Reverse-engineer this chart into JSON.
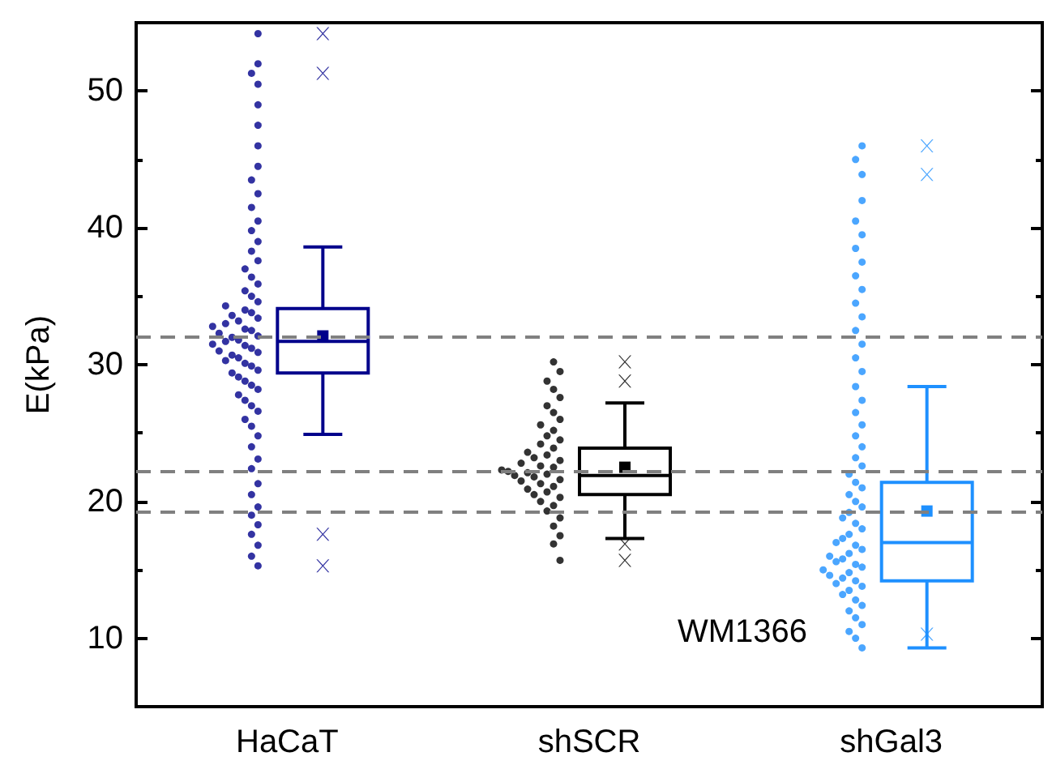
{
  "chart_data": {
    "type": "box",
    "ylabel": "E(kPa)",
    "categories": [
      "HaCaT",
      "shSCR",
      "shGal3"
    ],
    "ylim": [
      5,
      55
    ],
    "yticks": [
      10,
      20,
      30,
      40,
      50
    ],
    "grid": false,
    "annotations": [
      "WM1366"
    ],
    "ref_lines": [
      {
        "axis": "y",
        "value": 32.0,
        "color": "#808080",
        "line_style": "dashed"
      },
      {
        "axis": "y",
        "value": 22.2,
        "color": "#808080",
        "line_style": "dashed"
      },
      {
        "axis": "y",
        "value": 19.2,
        "color": "#808080",
        "line_style": "dashed"
      }
    ],
    "series": [
      {
        "type": "box",
        "colors": [
          "#00008b",
          "#000000",
          "#1e90ff"
        ],
        "boxes": [
          {
            "low": 24.9,
            "q1": 29.4,
            "median": 31.7,
            "q3": 34.1,
            "high": 38.6,
            "mean": 32.1,
            "outliers": [
              54.2,
              51.3,
              17.6,
              15.3
            ]
          },
          {
            "low": 17.3,
            "q1": 20.5,
            "median": 21.9,
            "q3": 23.9,
            "high": 27.2,
            "mean": 22.5,
            "outliers": [
              30.2,
              28.8,
              16.9,
              15.7
            ]
          },
          {
            "low": 9.3,
            "q1": 14.2,
            "median": 17.0,
            "q3": 21.4,
            "high": 28.4,
            "mean": 19.3,
            "outliers": [
              46.0,
              43.9,
              10.3
            ]
          }
        ]
      },
      {
        "type": "scatter",
        "color": "#00008b",
        "x": [
          "HaCaT",
          "HaCaT",
          "HaCaT",
          "HaCaT",
          "HaCaT",
          "HaCaT",
          "HaCaT",
          "HaCaT",
          "HaCaT",
          "HaCaT",
          "HaCaT",
          "HaCaT",
          "HaCaT",
          "HaCaT",
          "HaCaT",
          "HaCaT",
          "HaCaT",
          "HaCaT",
          "HaCaT",
          "HaCaT",
          "HaCaT",
          "HaCaT",
          "HaCaT",
          "HaCaT",
          "HaCaT",
          "HaCaT",
          "HaCaT",
          "HaCaT",
          "HaCaT",
          "HaCaT",
          "HaCaT",
          "HaCaT",
          "HaCaT",
          "HaCaT",
          "HaCaT",
          "HaCaT",
          "HaCaT",
          "HaCaT",
          "HaCaT",
          "HaCaT",
          "HaCaT",
          "HaCaT",
          "HaCaT",
          "HaCaT",
          "HaCaT",
          "HaCaT",
          "HaCaT",
          "HaCaT",
          "HaCaT",
          "HaCaT",
          "HaCaT",
          "HaCaT",
          "HaCaT",
          "HaCaT",
          "HaCaT",
          "HaCaT",
          "HaCaT",
          "HaCaT",
          "HaCaT",
          "HaCaT",
          "HaCaT",
          "HaCaT",
          "HaCaT",
          "HaCaT",
          "HaCaT",
          "HaCaT",
          "HaCaT",
          "HaCaT",
          "HaCaT",
          "HaCaT",
          "HaCaT",
          "HaCaT"
        ],
        "values": [
          15.3,
          16.0,
          16.8,
          17.6,
          18.3,
          19.0,
          19.6,
          20.5,
          21.3,
          22.4,
          23.1,
          24.0,
          24.8,
          25.5,
          26.0,
          26.6,
          27.0,
          27.4,
          27.8,
          28.2,
          28.5,
          28.8,
          29.1,
          29.4,
          29.6,
          29.9,
          30.1,
          30.3,
          30.5,
          30.7,
          30.9,
          31.0,
          31.2,
          31.4,
          31.5,
          31.7,
          31.8,
          32.0,
          32.1,
          32.3,
          32.5,
          32.6,
          32.8,
          33.0,
          33.2,
          33.4,
          33.6,
          33.8,
          34.0,
          34.3,
          34.6,
          35.0,
          35.4,
          35.9,
          36.4,
          37.0,
          37.6,
          38.3,
          39.0,
          39.8,
          40.5,
          41.5,
          42.5,
          43.5,
          44.5,
          46.0,
          47.5,
          49.0,
          50.5,
          51.3,
          52.0,
          54.2
        ]
      },
      {
        "type": "scatter",
        "color": "#000000",
        "x": [
          "shSCR",
          "shSCR",
          "shSCR",
          "shSCR",
          "shSCR",
          "shSCR",
          "shSCR",
          "shSCR",
          "shSCR",
          "shSCR",
          "shSCR",
          "shSCR",
          "shSCR",
          "shSCR",
          "shSCR",
          "shSCR",
          "shSCR",
          "shSCR",
          "shSCR",
          "shSCR",
          "shSCR",
          "shSCR",
          "shSCR",
          "shSCR",
          "shSCR",
          "shSCR",
          "shSCR",
          "shSCR",
          "shSCR",
          "shSCR",
          "shSCR",
          "shSCR",
          "shSCR",
          "shSCR",
          "shSCR",
          "shSCR",
          "shSCR",
          "shSCR",
          "shSCR",
          "shSCR",
          "shSCR",
          "shSCR",
          "shSCR"
        ],
        "values": [
          15.7,
          16.9,
          17.5,
          18.2,
          18.8,
          19.3,
          19.7,
          20.0,
          20.3,
          20.5,
          20.7,
          20.9,
          21.1,
          21.3,
          21.5,
          21.6,
          21.8,
          21.9,
          22.0,
          22.1,
          22.2,
          22.3,
          22.5,
          22.6,
          22.8,
          23.0,
          23.2,
          23.4,
          23.6,
          23.9,
          24.2,
          24.5,
          24.8,
          25.2,
          25.6,
          26.0,
          26.5,
          27.0,
          27.6,
          28.2,
          28.8,
          29.5,
          30.2
        ]
      },
      {
        "type": "scatter",
        "color": "#1e90ff",
        "x": [
          "shGal3",
          "shGal3",
          "shGal3",
          "shGal3",
          "shGal3",
          "shGal3",
          "shGal3",
          "shGal3",
          "shGal3",
          "shGal3",
          "shGal3",
          "shGal3",
          "shGal3",
          "shGal3",
          "shGal3",
          "shGal3",
          "shGal3",
          "shGal3",
          "shGal3",
          "shGal3",
          "shGal3",
          "shGal3",
          "shGal3",
          "shGal3",
          "shGal3",
          "shGal3",
          "shGal3",
          "shGal3",
          "shGal3",
          "shGal3",
          "shGal3",
          "shGal3",
          "shGal3",
          "shGal3",
          "shGal3",
          "shGal3",
          "shGal3",
          "shGal3",
          "shGal3",
          "shGal3",
          "shGal3",
          "shGal3",
          "shGal3",
          "shGal3",
          "shGal3",
          "shGal3",
          "shGal3",
          "shGal3",
          "shGal3",
          "shGal3",
          "shGal3",
          "shGal3",
          "shGal3",
          "shGal3",
          "shGal3",
          "shGal3",
          "shGal3",
          "shGal3",
          "shGal3",
          "shGal3",
          "shGal3",
          "shGal3"
        ],
        "values": [
          9.3,
          10.0,
          10.5,
          11.0,
          11.5,
          12.0,
          12.4,
          12.8,
          13.2,
          13.5,
          13.8,
          14.0,
          14.2,
          14.4,
          14.6,
          14.8,
          15.0,
          15.2,
          15.4,
          15.6,
          15.8,
          16.0,
          16.2,
          16.5,
          16.8,
          17.0,
          17.3,
          17.6,
          18.0,
          18.4,
          18.8,
          19.2,
          19.6,
          20.0,
          20.5,
          21.0,
          21.4,
          22.0,
          22.6,
          23.2,
          24.0,
          24.8,
          25.6,
          26.5,
          27.4,
          28.4,
          29.5,
          30.5,
          31.5,
          32.5,
          33.5,
          34.5,
          35.5,
          36.5,
          37.5,
          38.5,
          39.5,
          40.5,
          42.0,
          43.9,
          45.0,
          46.0
        ]
      }
    ]
  }
}
